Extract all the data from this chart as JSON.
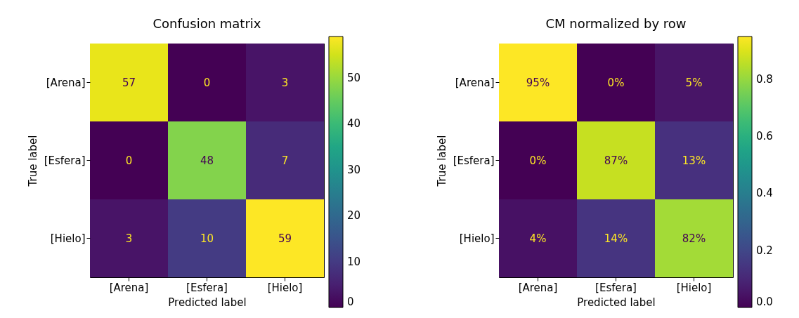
{
  "chart_data": [
    {
      "type": "heatmap",
      "title": "Confusion matrix",
      "xlabel": "Predicted label",
      "ylabel": "True label",
      "categories": [
        "[Arena]",
        "[Esfera]",
        "[Hielo]"
      ],
      "y_categories": [
        "[Arena]",
        "[Esfera]",
        "[Hielo]"
      ],
      "cells": [
        [
          57,
          0,
          3
        ],
        [
          0,
          48,
          7
        ],
        [
          3,
          10,
          59
        ]
      ],
      "data_labels": true,
      "clim": [
        0,
        59
      ],
      "cticks": [
        0,
        10,
        20,
        30,
        40,
        50
      ]
    },
    {
      "type": "heatmap",
      "title": "CM normalized by row",
      "xlabel": "Predicted label",
      "ylabel": "True label",
      "categories": [
        "[Arena]",
        "[Esfera]",
        "[Hielo]"
      ],
      "y_categories": [
        "[Arena]",
        "[Esfera]",
        "[Hielo]"
      ],
      "cells": [
        [
          0.95,
          0,
          0.05
        ],
        [
          0,
          0.87,
          0.13
        ],
        [
          0.04,
          0.14,
          0.82
        ]
      ],
      "cell_labels": [
        [
          "95%",
          "0%",
          "5%"
        ],
        [
          "0%",
          "87%",
          "13%"
        ],
        [
          "4%",
          "14%",
          "82%"
        ]
      ],
      "clim": [
        0,
        0.95
      ],
      "cticks": [
        {
          "value": 0,
          "label": "0.0"
        },
        0.2,
        0.4,
        0.6,
        0.8
      ]
    }
  ]
}
